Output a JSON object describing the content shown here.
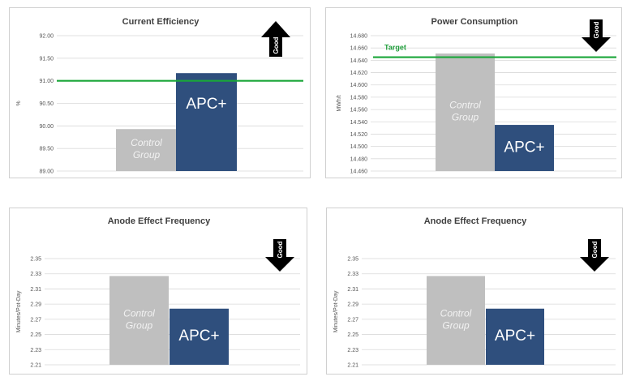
{
  "colors": {
    "control": "#bfbfbf",
    "apc": "#2f4f7d",
    "target": "#1aa639",
    "grid": "#d9d9d9",
    "arrow": "#000000"
  },
  "chart_data": [
    {
      "type": "bar",
      "title": "Current Efficiency",
      "ylabel": "%",
      "ylim": [
        89.0,
        92.0
      ],
      "yticks": [
        "89.00",
        "89.50",
        "90.00",
        "90.50",
        "91.00",
        "91.50",
        "92.00"
      ],
      "categories": [
        "Control Group",
        "APC+"
      ],
      "bar_labels": [
        "Control\nGroup",
        "APC+"
      ],
      "values": [
        89.93,
        91.17
      ],
      "target": 91.0,
      "target_label": "",
      "good_label": "Good",
      "good_direction": "up"
    },
    {
      "type": "bar",
      "title": "Power Consumption",
      "ylabel": "MWh/t",
      "ylim": [
        14.46,
        14.68
      ],
      "yticks": [
        "14.460",
        "14.480",
        "14.500",
        "14.520",
        "14.540",
        "14.560",
        "14.580",
        "14.600",
        "14.620",
        "14.640",
        "14.660",
        "14.680"
      ],
      "categories": [
        "Control Group",
        "APC+"
      ],
      "bar_labels": [
        "Control\nGroup",
        "APC+"
      ],
      "values": [
        14.651,
        14.535
      ],
      "target": 14.645,
      "target_label": "Target",
      "good_label": "Good",
      "good_direction": "down"
    },
    {
      "type": "bar",
      "title": "Anode Effect Frequency",
      "ylabel": "Minutes/Pot-Day",
      "ylim": [
        2.21,
        2.35
      ],
      "yticks": [
        "2.21",
        "2.23",
        "2.25",
        "2.27",
        "2.29",
        "2.31",
        "2.33",
        "2.35"
      ],
      "categories": [
        "Control Group",
        "APC+"
      ],
      "bar_labels": [
        "Control\nGroup",
        "APC+"
      ],
      "values": [
        2.327,
        2.284
      ],
      "target": null,
      "target_label": "",
      "good_label": "Good",
      "good_direction": "down"
    },
    {
      "type": "bar",
      "title": "Anode Effect Frequency",
      "ylabel": "Minutes/Pot-Day",
      "ylim": [
        2.21,
        2.35
      ],
      "yticks": [
        "2.21",
        "2.23",
        "2.25",
        "2.27",
        "2.29",
        "2.31",
        "2.33",
        "2.35"
      ],
      "categories": [
        "Control Group",
        "APC+"
      ],
      "bar_labels": [
        "Control\nGroup",
        "APC+"
      ],
      "values": [
        2.327,
        2.284
      ],
      "target": null,
      "target_label": "",
      "good_label": "Good",
      "good_direction": "down"
    }
  ]
}
